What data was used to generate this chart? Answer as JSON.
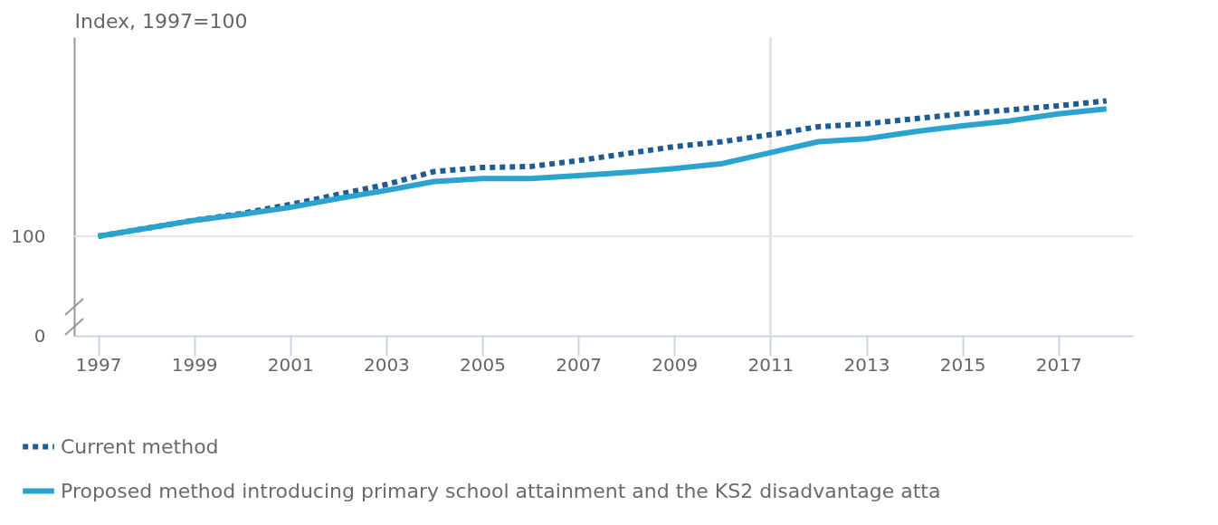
{
  "chart_data": {
    "type": "line",
    "ylabel": "Index, 1997=100",
    "x": [
      1997,
      1998,
      1999,
      2000,
      2001,
      2002,
      2003,
      2004,
      2005,
      2006,
      2007,
      2008,
      2009,
      2010,
      2011,
      2012,
      2013,
      2014,
      2015,
      2016,
      2017,
      2018
    ],
    "series": [
      {
        "name": "Current method",
        "color": "#1f5c94",
        "line_style": "dotted",
        "values": [
          100,
          108,
          116,
          123,
          132,
          142,
          152,
          165,
          169,
          170,
          176,
          183,
          190,
          195,
          202,
          210,
          213,
          218,
          223,
          227,
          231,
          236
        ]
      },
      {
        "name": "Proposed method introducing primary school attainment and the KS2 disadvantage atta",
        "color": "#2ba3d0",
        "line_style": "solid",
        "values": [
          100,
          108,
          116,
          122,
          129,
          138,
          146,
          155,
          158,
          158,
          161,
          164,
          168,
          173,
          184,
          195,
          198,
          205,
          211,
          216,
          223,
          228
        ]
      }
    ],
    "xlim": [
      1996.5,
      2018.55
    ],
    "xticks": [
      1997,
      1999,
      2001,
      2003,
      2005,
      2007,
      2009,
      2011,
      2013,
      2015,
      2017
    ],
    "ylim": [
      0,
      300
    ],
    "yticks": [
      0,
      100
    ],
    "ref_lines": [
      {
        "axis": "x",
        "value": 2011,
        "color": "#e3e3e3"
      },
      {
        "axis": "y",
        "value": 100,
        "color": "#e6e6e6"
      }
    ],
    "legend": "bottom left"
  }
}
